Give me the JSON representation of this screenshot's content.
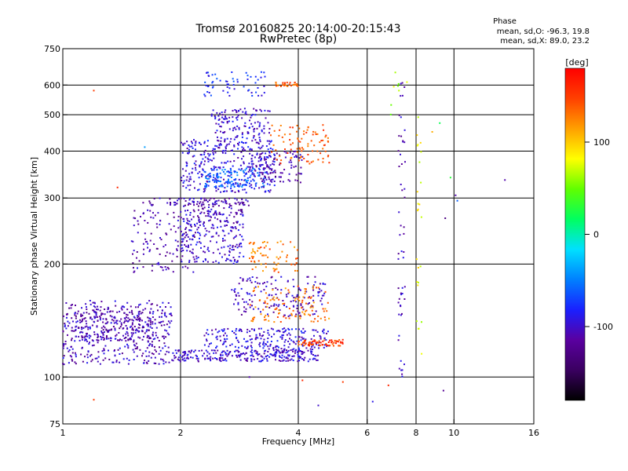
{
  "chart_data": {
    "type": "scatter",
    "title": "Tromsø 20160825 20:14:00-20:15:43",
    "subtitle": "RwPretec (8p)",
    "xlabel": "Frequency [MHz]",
    "ylabel": "Stationary phase Virtual Height [km]",
    "x_scale": "log",
    "y_scale": "log",
    "xlim": [
      1,
      16
    ],
    "ylim": [
      75,
      750
    ],
    "x_ticks": [
      1,
      2,
      4,
      6,
      8,
      10,
      16
    ],
    "y_ticks": [
      75,
      100,
      200,
      300,
      400,
      500,
      600,
      750
    ],
    "x_gridlines": [
      2,
      4,
      6,
      8,
      10
    ],
    "y_gridlines": [
      100,
      200,
      300,
      400,
      500,
      600
    ],
    "stats_header": "Phase",
    "stats_lines": [
      "mean, sd,O: -96.3, 19.8",
      "mean, sd,X: 89.0, 23.2"
    ],
    "colorbar": {
      "label": "[deg]",
      "range": [
        -180,
        180
      ],
      "ticks": [
        100,
        0,
        -100
      ],
      "colors": [
        "#000000",
        "#3a0060",
        "#5a00a0",
        "#1a20ff",
        "#0080ff",
        "#00e0ff",
        "#00ff60",
        "#60ff00",
        "#ffff00",
        "#ffa000",
        "#ff4000",
        "#ff0000"
      ]
    },
    "clusters": [
      {
        "x": [
          1.0,
          1.9
        ],
        "y": [
          108,
          160
        ],
        "phase": -105,
        "n": 420
      },
      {
        "x": [
          1.05,
          1.7
        ],
        "y": [
          125,
          150
        ],
        "phase": -112,
        "n": 160
      },
      {
        "x": [
          1.9,
          4.5
        ],
        "y": [
          110,
          118
        ],
        "phase": -100,
        "n": 260
      },
      {
        "x": [
          2.3,
          4.8
        ],
        "y": [
          118,
          135
        ],
        "phase": -95,
        "n": 220
      },
      {
        "x": [
          2.7,
          4.7
        ],
        "y": [
          145,
          185
        ],
        "phase": -105,
        "n": 160
      },
      {
        "x": [
          3.0,
          4.8
        ],
        "y": [
          140,
          175
        ],
        "phase": 130,
        "n": 110
      },
      {
        "x": [
          4.0,
          5.2
        ],
        "y": [
          121,
          126
        ],
        "phase": 150,
        "n": 70
      },
      {
        "x": [
          1.5,
          2.2
        ],
        "y": [
          190,
          280
        ],
        "phase": -110,
        "n": 120
      },
      {
        "x": [
          2.0,
          2.9
        ],
        "y": [
          200,
          280
        ],
        "phase": -100,
        "n": 200
      },
      {
        "x": [
          2.2,
          2.9
        ],
        "y": [
          250,
          300
        ],
        "phase": -110,
        "n": 70
      },
      {
        "x": [
          3.0,
          4.0
        ],
        "y": [
          190,
          230
        ],
        "phase": 130,
        "n": 70
      },
      {
        "x": [
          1.6,
          3.0
        ],
        "y": [
          285,
          300
        ],
        "phase": -110,
        "n": 80
      },
      {
        "x": [
          2.0,
          3.5
        ],
        "y": [
          310,
          430
        ],
        "phase": -95,
        "n": 300
      },
      {
        "x": [
          2.3,
          3.3
        ],
        "y": [
          320,
          360
        ],
        "phase": -60,
        "n": 120
      },
      {
        "x": [
          2.4,
          3.4
        ],
        "y": [
          400,
          520
        ],
        "phase": -100,
        "n": 160
      },
      {
        "x": [
          3.0,
          4.1
        ],
        "y": [
          330,
          400
        ],
        "phase": -110,
        "n": 110
      },
      {
        "x": [
          3.4,
          4.8
        ],
        "y": [
          370,
          470
        ],
        "phase": 140,
        "n": 90
      },
      {
        "x": [
          2.3,
          3.3
        ],
        "y": [
          560,
          650
        ],
        "phase": -80,
        "n": 60
      },
      {
        "x": [
          3.5,
          4.0
        ],
        "y": [
          595,
          610
        ],
        "phase": 140,
        "n": 30
      },
      {
        "x": [
          7.2,
          7.5
        ],
        "y": [
          100,
          620
        ],
        "phase": -105,
        "n": 55
      },
      {
        "x": [
          6.8,
          7.6
        ],
        "y": [
          480,
          650
        ],
        "phase": 60,
        "n": 8
      },
      {
        "x": [
          8.0,
          8.3
        ],
        "y": [
          100,
          500
        ],
        "phase": 80,
        "n": 25
      }
    ],
    "outliers": [
      {
        "x": 1.2,
        "y": 87,
        "phase": 150
      },
      {
        "x": 1.2,
        "y": 580,
        "phase": 150
      },
      {
        "x": 1.38,
        "y": 320,
        "phase": 160
      },
      {
        "x": 1.62,
        "y": 410,
        "phase": -40
      },
      {
        "x": 3.0,
        "y": 100,
        "phase": -110
      },
      {
        "x": 4.1,
        "y": 98,
        "phase": 160
      },
      {
        "x": 4.5,
        "y": 84,
        "phase": -100
      },
      {
        "x": 5.2,
        "y": 97,
        "phase": 150
      },
      {
        "x": 6.2,
        "y": 86,
        "phase": -90
      },
      {
        "x": 6.8,
        "y": 95,
        "phase": 160
      },
      {
        "x": 8.8,
        "y": 450,
        "phase": 110
      },
      {
        "x": 9.2,
        "y": 475,
        "phase": 20
      },
      {
        "x": 9.4,
        "y": 92,
        "phase": -120
      },
      {
        "x": 9.5,
        "y": 265,
        "phase": -130
      },
      {
        "x": 9.8,
        "y": 340,
        "phase": 30
      },
      {
        "x": 10.1,
        "y": 305,
        "phase": -110
      },
      {
        "x": 10.2,
        "y": 295,
        "phase": -60
      },
      {
        "x": 13.5,
        "y": 335,
        "phase": -110
      }
    ]
  }
}
